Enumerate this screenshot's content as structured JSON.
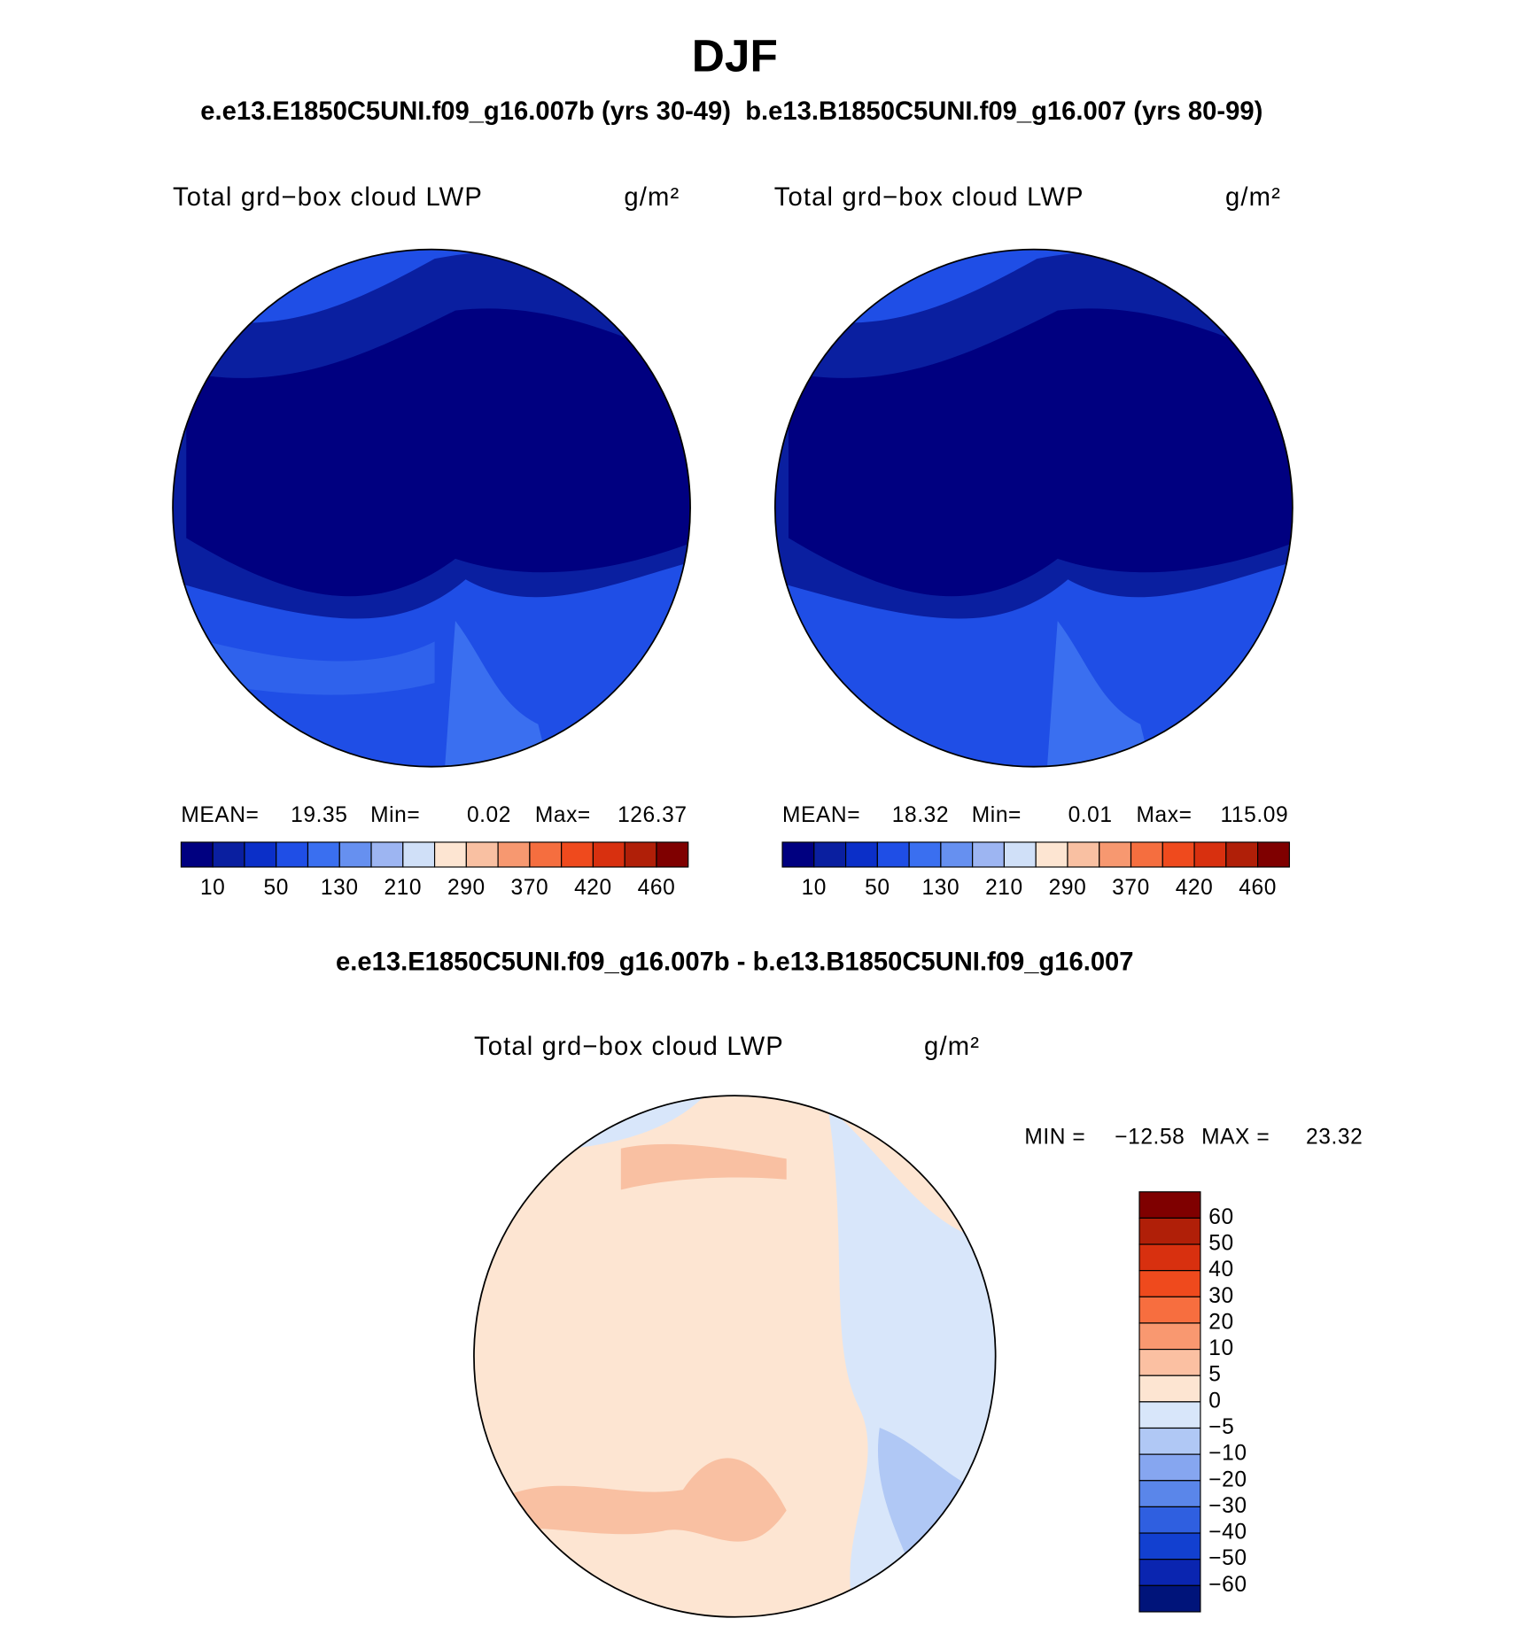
{
  "title": "DJF",
  "subtitle": "e.e13.E1850C5UNI.f09_g16.007b (yrs 30-49)  b.e13.B1850C5UNI.f09_g16.007 (yrs 80-99)",
  "panels": [
    {
      "variable": "Total grd−box cloud LWP",
      "units": "g/m²",
      "stats": [
        {
          "label": "MEAN=",
          "value": "19.35"
        },
        {
          "label": "Min=",
          "value": "0.02"
        },
        {
          "label": "Max=",
          "value": "126.37"
        }
      ]
    },
    {
      "variable": "Total grd−box cloud LWP",
      "units": "g/m²",
      "stats": [
        {
          "label": "MEAN=",
          "value": "18.32"
        },
        {
          "label": "Min=",
          "value": "0.01"
        },
        {
          "label": "Max=",
          "value": "115.09"
        }
      ]
    }
  ],
  "colorbar": {
    "labels": [
      "10",
      "50",
      "130",
      "210",
      "290",
      "370",
      "420",
      "460"
    ],
    "colors": [
      "#000080",
      "#0a1fa0",
      "#0b2fc8",
      "#1f4ee6",
      "#3a6ff0",
      "#6690f0",
      "#9db5f2",
      "#d0e0f8",
      "#fde5d2",
      "#f9c0a2",
      "#f79870",
      "#f56e3f",
      "#ef4a1d",
      "#d8300f",
      "#b01f08",
      "#7f0000"
    ]
  },
  "difference": {
    "title": "e.e13.E1850C5UNI.f09_g16.007b - b.e13.B1850C5UNI.f09_g16.007",
    "variable": "Total grd−box cloud LWP",
    "units": "g/m²",
    "stats": [
      {
        "label": "MIN =",
        "value": "−12.58"
      },
      {
        "label": "MAX =",
        "value": "23.32"
      }
    ],
    "colorbar": {
      "labels": [
        "60",
        "50",
        "40",
        "30",
        "20",
        "10",
        "5",
        "0",
        "−5",
        "−10",
        "−20",
        "−30",
        "−40",
        "−50",
        "−60"
      ],
      "colors": [
        "#7f0000",
        "#b01f08",
        "#d8300f",
        "#ef4a1d",
        "#f76e3f",
        "#f99870",
        "#fbc0a2",
        "#fde5d2",
        "#d8e6fa",
        "#b0c8f5",
        "#86a6f0",
        "#5a86ea",
        "#2f5fe0",
        "#1240d0",
        "#0a25b0",
        "#00147a"
      ]
    }
  }
}
